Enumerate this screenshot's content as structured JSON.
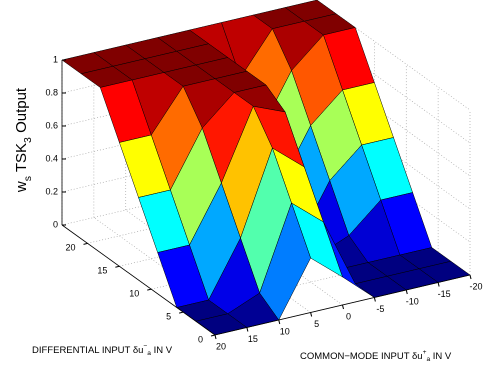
{
  "chart_data": {
    "type": "surface",
    "xlabel_parts": [
      {
        "text": "DIFFERENTIAL INPUT δu"
      },
      {
        "text": "−",
        "pos": "sup"
      },
      {
        "text": "a",
        "pos": "sub"
      },
      {
        "text": " IN V"
      }
    ],
    "ylabel_parts": [
      {
        "text": "COMMON−MODE INPUT δu"
      },
      {
        "text": "+",
        "pos": "sup"
      },
      {
        "text": "a",
        "pos": "sub"
      },
      {
        "text": " IN V"
      }
    ],
    "zlabel_parts": [
      {
        "text": "w"
      },
      {
        "text": "s",
        "pos": "sub"
      },
      {
        "text": " TSK"
      },
      {
        "text": "3",
        "pos": "sub"
      },
      {
        "text": "  Output"
      }
    ],
    "x": [
      0,
      3,
      6,
      9,
      12,
      15,
      18,
      21,
      24
    ],
    "y": [
      -20,
      -15,
      -10,
      -5,
      0,
      5,
      10,
      15,
      20
    ],
    "z": [
      [
        0,
        0,
        0,
        0,
        0.17,
        0.33,
        0,
        0,
        0
      ],
      [
        0,
        0,
        0,
        0,
        0.42,
        0.58,
        0.08,
        0,
        0
      ],
      [
        0,
        0,
        0,
        0,
        0.67,
        0.83,
        0.33,
        0,
        0
      ],
      [
        0.25,
        0.25,
        0.08,
        0,
        0.92,
        1,
        0.58,
        0.25,
        0.25
      ],
      [
        0.5,
        0.5,
        0.33,
        0,
        1,
        1,
        0.83,
        0.5,
        0.5
      ],
      [
        0.75,
        0.75,
        0.58,
        0.25,
        1,
        1,
        1,
        0.75,
        0.75
      ],
      [
        1,
        1,
        0.83,
        0.5,
        1,
        1,
        1,
        1,
        1
      ],
      [
        1,
        1,
        1,
        0.75,
        1,
        1,
        1,
        1,
        1
      ],
      [
        1,
        1,
        1,
        1,
        1,
        1,
        1,
        1,
        1
      ]
    ],
    "xlim": [
      0,
      24
    ],
    "ylim": [
      -20,
      20
    ],
    "zlim": [
      0,
      1
    ],
    "xticks": [
      0,
      5,
      10,
      15,
      20
    ],
    "yticks": [
      -20,
      -15,
      -10,
      -5,
      0,
      5,
      10,
      15,
      20
    ],
    "zticks": [
      0,
      0.2,
      0.4,
      0.6,
      0.8,
      1
    ],
    "colormap": "jet",
    "grid": true
  }
}
